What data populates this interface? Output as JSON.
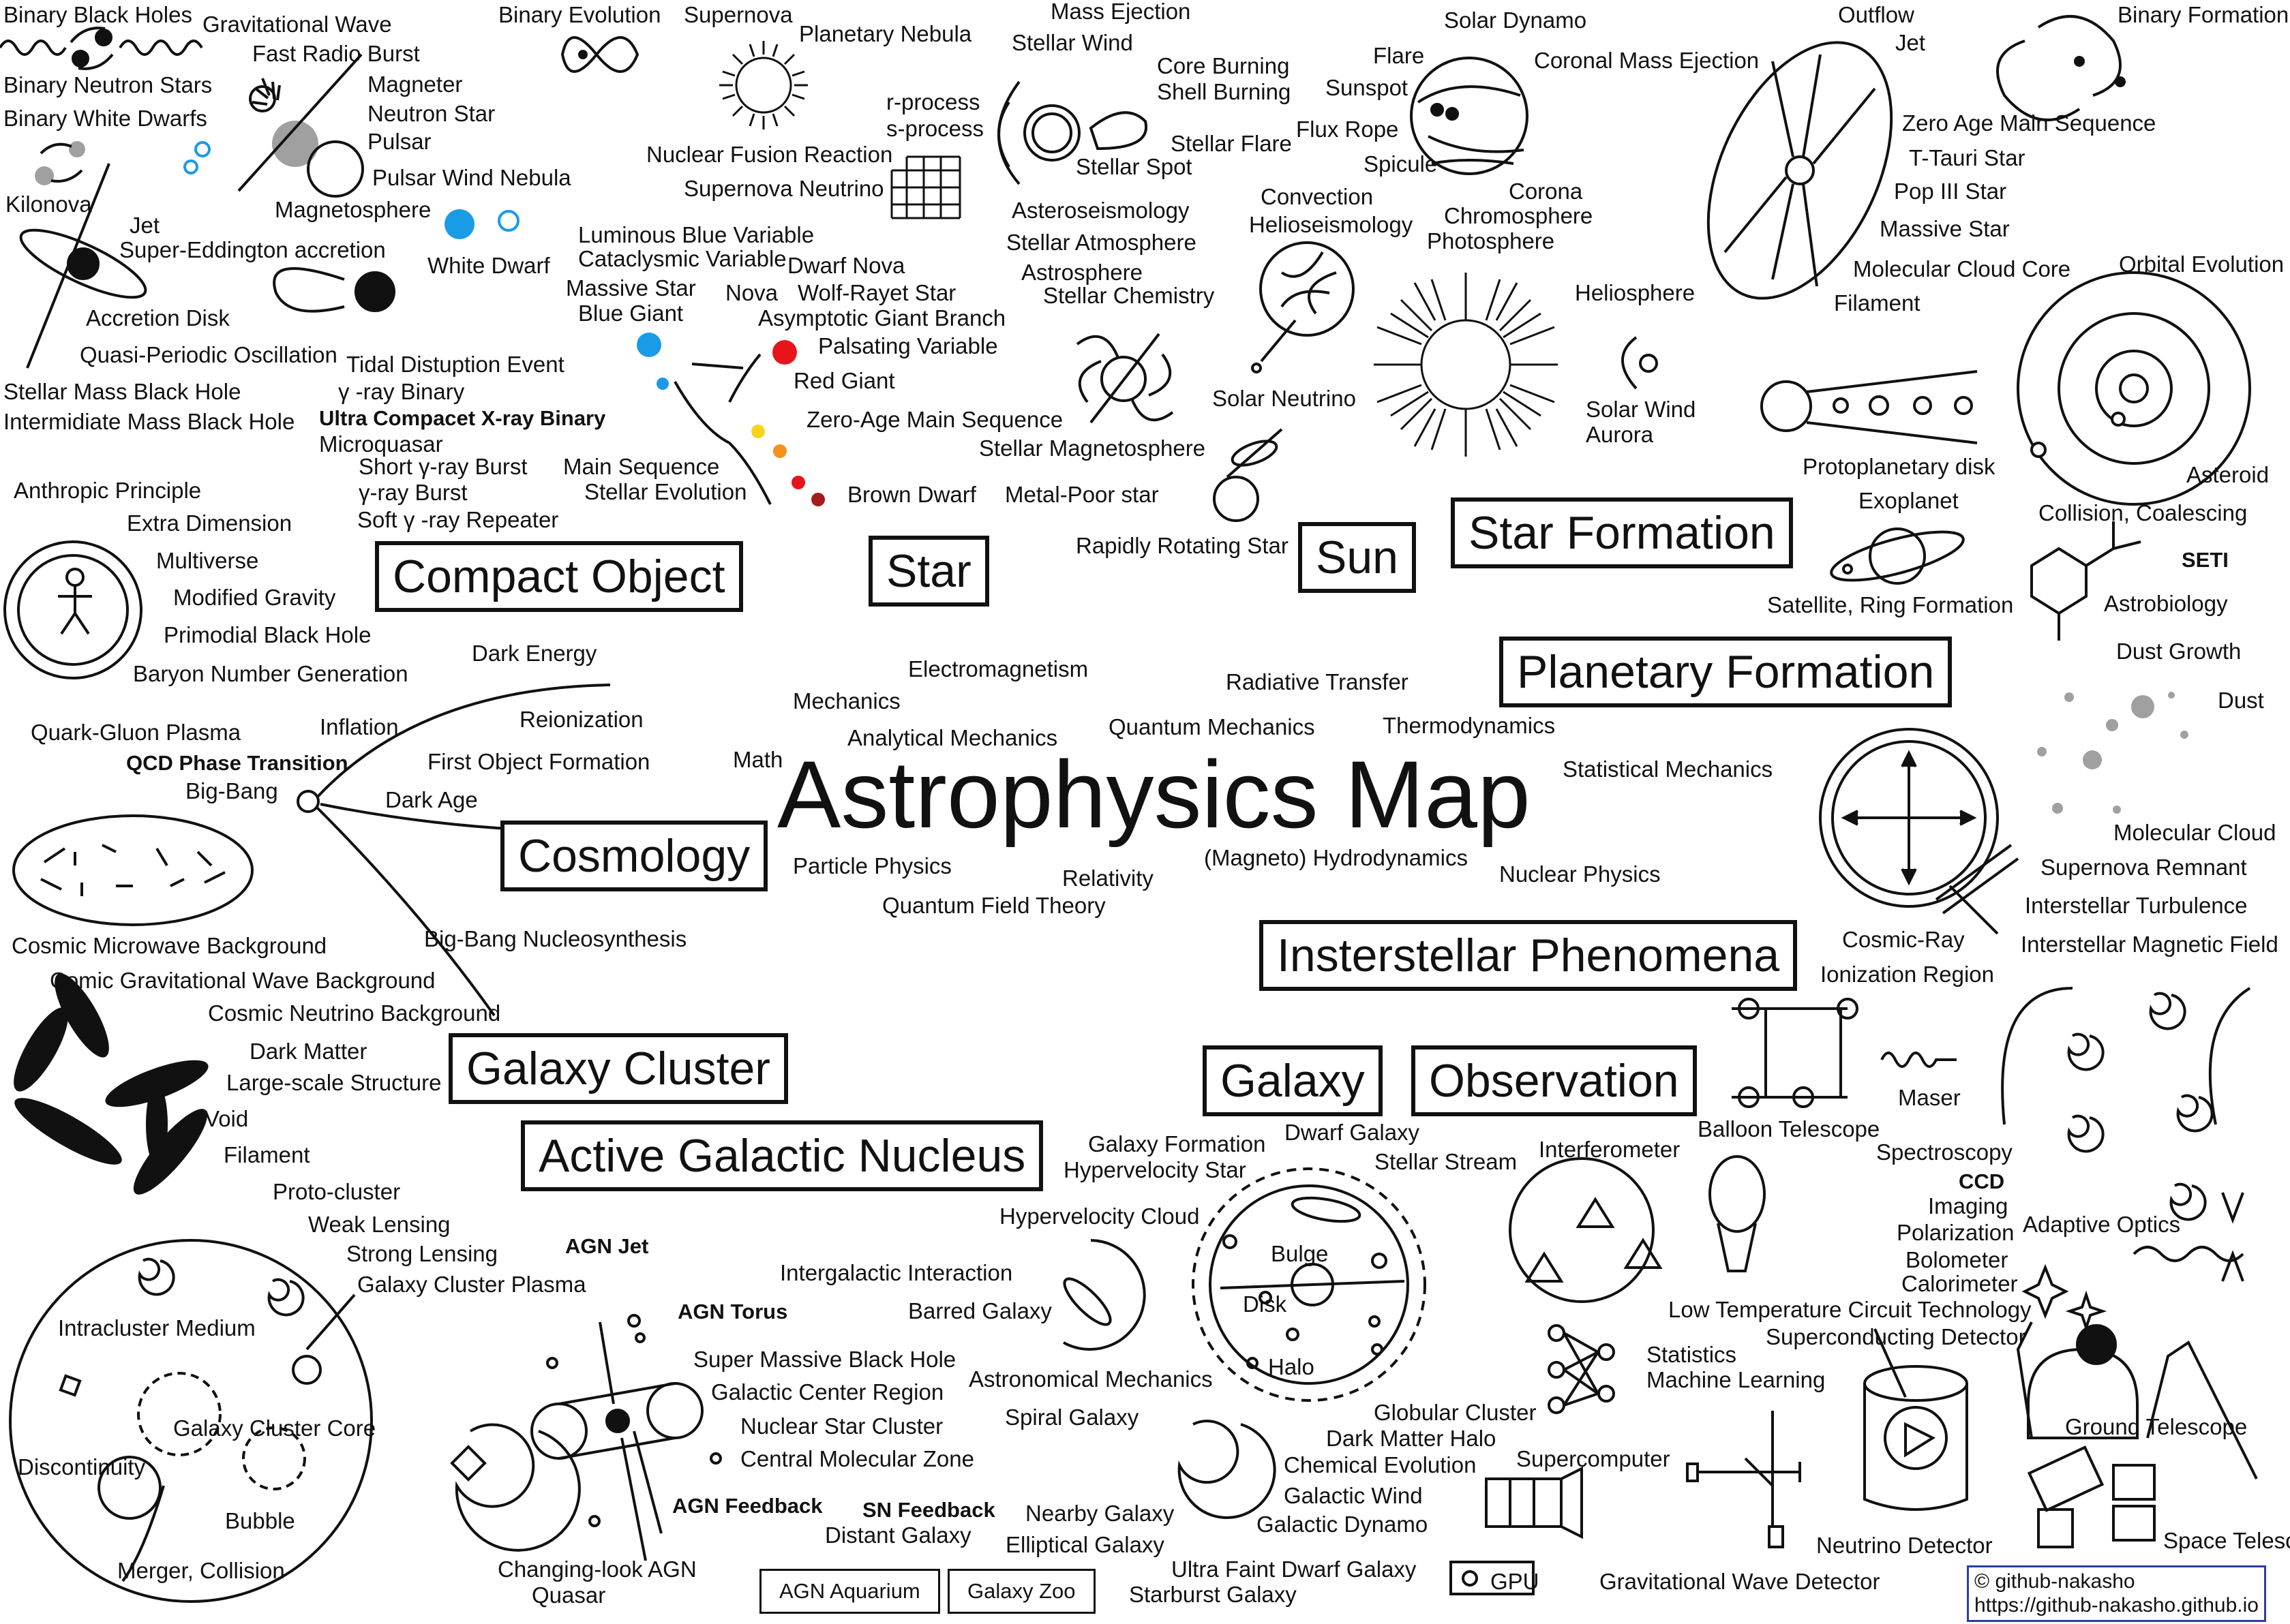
{
  "title": "Astrophysics Map",
  "categories": {
    "compact_object": "Compact Object",
    "star": "Star",
    "sun": "Sun",
    "star_formation": "Star Formation",
    "planetary_formation": "Planetary Formation",
    "cosmology": "Cosmology",
    "interstellar": "Insterstellar Phenomena",
    "galaxy_cluster": "Galaxy Cluster",
    "agn": "Active Galactic Nucleus",
    "galaxy": "Galaxy",
    "observation": "Observation"
  },
  "core_topics": [
    "Electromagnetism",
    "Mechanics",
    "Analytical Mechanics",
    "Radiative Transfer",
    "Quantum Mechanics",
    "Thermodynamics",
    "Math",
    "Statistical Mechanics",
    "Particle Physics",
    "(Magneto) Hydrodynamics",
    "Relativity",
    "Nuclear Physics",
    "Quantum Field Theory"
  ],
  "compact_object_terms": [
    "Binary Black Holes",
    "Gravitational Wave",
    "Binary Neutron Stars",
    "Fast Radio Burst",
    "Binary White Dwarfs",
    "Magneter",
    "Neutron Star",
    "Pulsar",
    "Kilonova",
    "Magnetosphere",
    "Pulsar Wind Nebula",
    "Jet",
    "Super-Eddington accretion",
    "White Dwarf",
    "Accretion Disk",
    "Quasi-Periodic Oscillation",
    "Tidal Distuption Event",
    "Stellar Mass Black Hole",
    "γ -ray Binary",
    "Intermidiate Mass Black Hole",
    "Ultra Compacet X-ray Binary",
    "Microquasar",
    "Short γ-ray Burst",
    "γ-ray Burst",
    "Soft  γ -ray Repeater"
  ],
  "star_terms": [
    "Binary Evolution",
    "Supernova",
    "Planetary Nebula",
    "r-process",
    "s-process",
    "Nuclear Fusion Reaction",
    "Supernova Neutrino",
    "Luminous Blue Variable",
    "Cataclysmic Variable",
    "Dwarf Nova",
    "Massive Star",
    "Nova",
    "Wolf-Rayet Star",
    "Blue Giant",
    "Asymptotic Giant Branch",
    "Palsating Variable",
    "Red Giant",
    "Zero-Age Main Sequence",
    "Main Sequence",
    "Stellar Evolution",
    "Brown Dwarf",
    "Mass Ejection",
    "Stellar Wind",
    "Core Burning",
    "Shell Burning",
    "Stellar Flare",
    "Stellar Spot",
    "Asteroseismology",
    "Stellar Atmosphere",
    "Astrosphere",
    "Stellar Chemistry",
    "Stellar Magnetosphere",
    "Metal-Poor star",
    "Rapidly Rotating Star"
  ],
  "sun_terms": [
    "Solar Dynamo",
    "Flare",
    "Coronal Mass Ejection",
    "Sunspot",
    "Flux Rope",
    "Spicule",
    "Convection",
    "Corona",
    "Helioseismology",
    "Chromosphere",
    "Photosphere",
    "Heliosphere",
    "Solar Neutrino",
    "Solar Wind",
    "Aurora"
  ],
  "star_formation_terms": [
    "Outflow",
    "Jet",
    "Binary Formation",
    "Zero Age Main Sequence",
    "T-Tauri Star",
    "Pop III Star",
    "Massive Star",
    "Molecular Cloud Core",
    "Filament",
    "Orbital Evolution",
    "Protoplanetary disk",
    "Asteroid",
    "Exoplanet",
    "Collision, Coalescing",
    "Satellite, Ring Formation",
    "SETI",
    "Astrobiology",
    "Dust Growth",
    "Dust"
  ],
  "cosmology_terms": [
    "Anthropic Principle",
    "Extra Dimension",
    "Multiverse",
    "Modified Gravity",
    "Primodial Black Hole",
    "Baryon Number Generation",
    "Dark Energy",
    "Inflation",
    "Reionization",
    "Quark-Gluon Plasma",
    "QCD Phase Transition",
    "First Object Formation",
    "Big-Bang",
    "Dark Age",
    "Cosmic Microwave Background",
    "Big-Bang Nucleosynthesis",
    "Comic Gravitational Wave Background",
    "Cosmic Neutrino Background"
  ],
  "interstellar_terms": [
    "Molecular Cloud",
    "Supernova Remnant",
    "Interstellar Turbulence",
    "Cosmic-Ray",
    "Interstellar Magnetic Field",
    "Ionization Region",
    "Maser"
  ],
  "galaxy_cluster_terms": [
    "Dark Matter",
    "Large-scale Structure",
    "Void",
    "Filament",
    "Proto-cluster",
    "Weak Lensing",
    "Strong Lensing",
    "Galaxy Cluster Plasma",
    "Intracluster Medium",
    "Galaxy Cluster Core",
    "Discontinuity",
    "Bubble",
    "Merger, Collision"
  ],
  "agn_terms": [
    "AGN Jet",
    "AGN Torus",
    "Super Massive Black Hole",
    "Galactic Center Region",
    "Nuclear Star Cluster",
    "Central Molecular Zone",
    "AGN Feedback",
    "Changing-look AGN",
    "Quasar",
    "SN Feedback"
  ],
  "galaxy_terms": [
    "Galaxy Formation",
    "Dwarf Galaxy",
    "Hypervelocity Star",
    "Stellar Stream",
    "Hypervelocity Cloud",
    "Intergalactic Interaction",
    "Bulge",
    "Barred Galaxy",
    "Disk",
    "Halo",
    "Astronomical Mechanics",
    "Spiral Galaxy",
    "Globular Cluster",
    "Dark Matter Halo",
    "Chemical Evolution",
    "Galactic Wind",
    "Galactic Dynamo",
    "Nearby Galaxy",
    "Distant Galaxy",
    "Elliptical Galaxy",
    "Ultra Faint Dwarf Galaxy",
    "Starburst Galaxy"
  ],
  "observation_terms": [
    "Balloon Telescope",
    "Spectroscopy",
    "CCD",
    "Imaging",
    "Polarization",
    "Bolometer",
    "Calorimeter",
    "Adaptive Optics",
    "Interferometer",
    "Low Temperature Circuit Technology",
    "Superconducting Detector",
    "Statistics",
    "Machine Learning",
    "Ground Telescope",
    "Supercomputer",
    "GPU",
    "Gravitational Wave Detector",
    "Neutrino Detector",
    "Space Telescope"
  ],
  "projects": [
    "AGN Aquarium",
    "Galaxy Zoo"
  ],
  "credit": [
    "© github-nakasho",
    "https://github-nakasho.github.io"
  ],
  "colors": {
    "ink": "#111111",
    "blue": "#1a9be6",
    "red": "#e8141b",
    "orange": "#f5921e",
    "yellow": "#f7d51e",
    "darkred": "#a31d1d",
    "gray": "#a0a0a0",
    "credit_border": "#2c3f9c"
  },
  "icons": [
    "black-hole-icon",
    "neutron-star-icon",
    "white-dwarf-icon",
    "supernova-icon",
    "sun-icon",
    "hr-diagram-icon",
    "bigbang-icon",
    "spiral-galaxy-icon",
    "telescope-icon",
    "balloon-icon",
    "neural-network-icon",
    "detector-icon",
    "dna-benzene-icon",
    "cosmic-web-icon"
  ]
}
